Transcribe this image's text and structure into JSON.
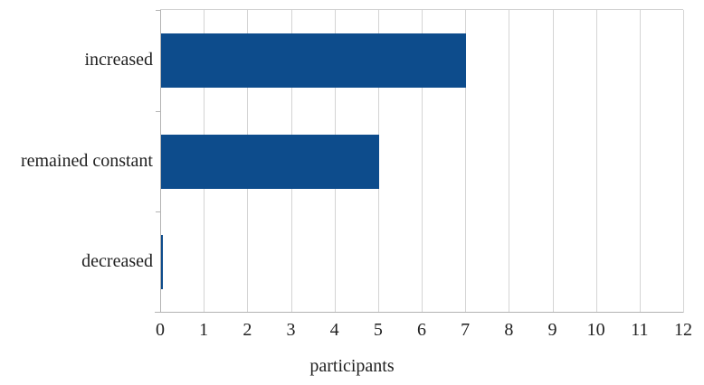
{
  "chart_data": {
    "type": "bar",
    "orientation": "horizontal",
    "title": "",
    "xlabel": "participants",
    "ylabel": "",
    "categories": [
      "increased",
      "remained constant",
      "decreased"
    ],
    "values": [
      7,
      5,
      0
    ],
    "xlim": [
      0,
      12
    ],
    "xticks": [
      0,
      1,
      2,
      3,
      4,
      5,
      6,
      7,
      8,
      9,
      10,
      11,
      12
    ],
    "grid": "vertical",
    "legend": "none",
    "bar_color": "#0d4c8c",
    "gridline_color": "#d4d4d4",
    "axis_color": "#b3b3b3",
    "text_color": "#1f1f1f",
    "background_color": "#ffffff"
  }
}
